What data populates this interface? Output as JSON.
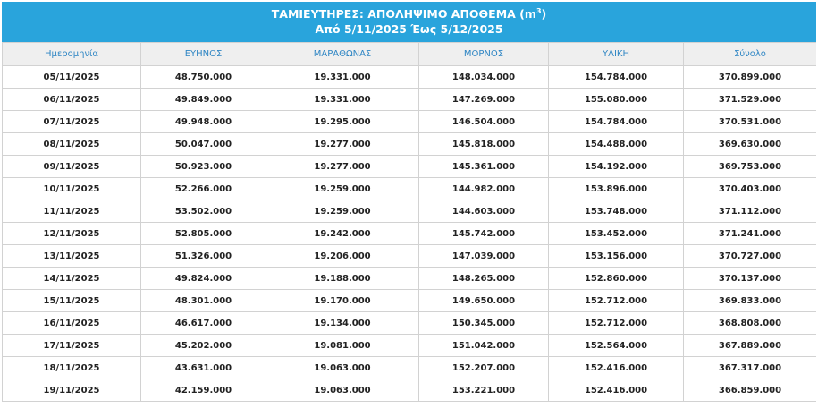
{
  "title": {
    "line1_prefix": "ΤΑΜΙΕΥΤΗΡΕΣ: ΑΠΟΛΗΨΙΜΟ ΑΠΟΘΕΜΑ (m",
    "line1_sup": "3",
    "line1_suffix": ")",
    "line2": "Από 5/11/2025 Έως 5/12/2025"
  },
  "table": {
    "headers": [
      "Ημερομηνία",
      "ΕΥΗΝΟΣ",
      "ΜΑΡΑΘΩΝΑΣ",
      "ΜΟΡΝΟΣ",
      "ΥΛΙΚΗ",
      "Σύνολο"
    ],
    "rows": [
      [
        "05/11/2025",
        "48.750.000",
        "19.331.000",
        "148.034.000",
        "154.784.000",
        "370.899.000"
      ],
      [
        "06/11/2025",
        "49.849.000",
        "19.331.000",
        "147.269.000",
        "155.080.000",
        "371.529.000"
      ],
      [
        "07/11/2025",
        "49.948.000",
        "19.295.000",
        "146.504.000",
        "154.784.000",
        "370.531.000"
      ],
      [
        "08/11/2025",
        "50.047.000",
        "19.277.000",
        "145.818.000",
        "154.488.000",
        "369.630.000"
      ],
      [
        "09/11/2025",
        "50.923.000",
        "19.277.000",
        "145.361.000",
        "154.192.000",
        "369.753.000"
      ],
      [
        "10/11/2025",
        "52.266.000",
        "19.259.000",
        "144.982.000",
        "153.896.000",
        "370.403.000"
      ],
      [
        "11/11/2025",
        "53.502.000",
        "19.259.000",
        "144.603.000",
        "153.748.000",
        "371.112.000"
      ],
      [
        "12/11/2025",
        "52.805.000",
        "19.242.000",
        "145.742.000",
        "153.452.000",
        "371.241.000"
      ],
      [
        "13/11/2025",
        "51.326.000",
        "19.206.000",
        "147.039.000",
        "153.156.000",
        "370.727.000"
      ],
      [
        "14/11/2025",
        "49.824.000",
        "19.188.000",
        "148.265.000",
        "152.860.000",
        "370.137.000"
      ],
      [
        "15/11/2025",
        "48.301.000",
        "19.170.000",
        "149.650.000",
        "152.712.000",
        "369.833.000"
      ],
      [
        "16/11/2025",
        "46.617.000",
        "19.134.000",
        "150.345.000",
        "152.712.000",
        "368.808.000"
      ],
      [
        "17/11/2025",
        "45.202.000",
        "19.081.000",
        "151.042.000",
        "152.564.000",
        "367.889.000"
      ],
      [
        "18/11/2025",
        "43.631.000",
        "19.063.000",
        "152.207.000",
        "152.416.000",
        "367.317.000"
      ],
      [
        "19/11/2025",
        "42.159.000",
        "19.063.000",
        "153.221.000",
        "152.416.000",
        "366.859.000"
      ]
    ]
  },
  "colors": {
    "title_bg": "#29a4dc",
    "header_text": "#2f86c4",
    "header_bg": "#efefef",
    "grid": "#d2d2d2"
  }
}
